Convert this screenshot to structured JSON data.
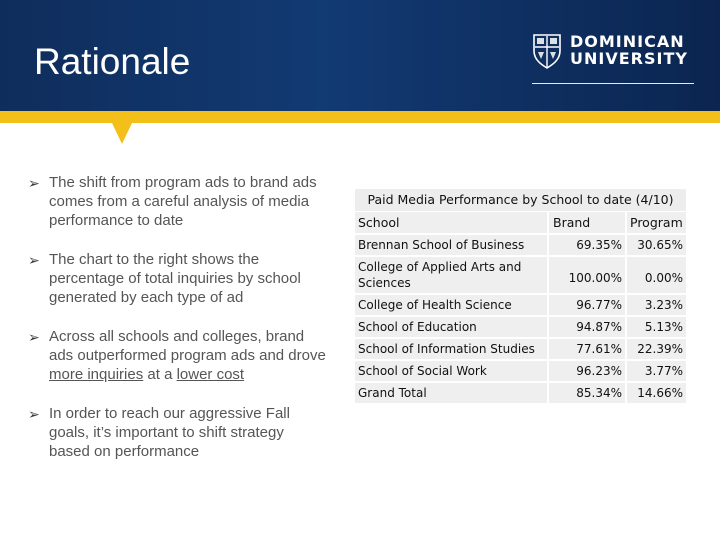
{
  "slide": {
    "title": "Rationale",
    "logo": {
      "line1": "DOMINICAN",
      "line2": "UNIVERSITY"
    }
  },
  "bullets": [
    {
      "text": "The shift from program ads to brand ads comes from a careful analysis of media performance to date"
    },
    {
      "text": "The chart to the right shows the percentage of total inquiries by school generated by each type of ad"
    },
    {
      "text_before": "Across all schools and colleges, brand ads outperformed program ads and drove ",
      "link1": "more inquiries",
      "text_mid": " at a ",
      "link2": "lower cost"
    },
    {
      "text": "In order to reach our aggressive Fall goals, it’s important to shift strategy based on performance"
    }
  ],
  "table": {
    "title": "Paid Media Performance by School to date (4/10)",
    "headers": [
      "School",
      "Brand",
      "Program"
    ],
    "rows": [
      {
        "school": "Brennan School of Business",
        "brand": "69.35%",
        "program": "30.65%"
      },
      {
        "school": "College of Applied Arts and Sciences",
        "brand": "100.00%",
        "program": "0.00%"
      },
      {
        "school": "College of Health Science",
        "brand": "96.77%",
        "program": "3.23%"
      },
      {
        "school": "School of Education",
        "brand": "94.87%",
        "program": "5.13%"
      },
      {
        "school": "School of Information Studies",
        "brand": "77.61%",
        "program": "22.39%"
      },
      {
        "school": "School of Social Work",
        "brand": "96.23%",
        "program": "3.77%"
      },
      {
        "school": "Grand Total",
        "brand": "85.34%",
        "program": "14.66%"
      }
    ]
  },
  "colors": {
    "header_navy": "#123a73",
    "accent_gold": "#f3c019"
  }
}
